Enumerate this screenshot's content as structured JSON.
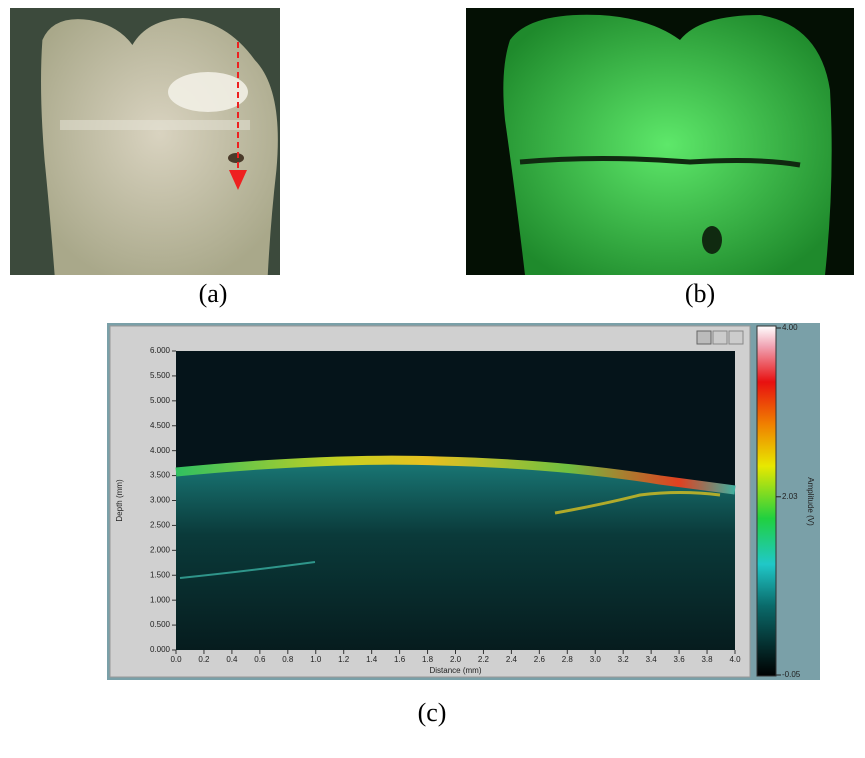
{
  "panels": {
    "a": "(a)",
    "b": "(b)",
    "c": "(c)"
  },
  "chart_data": {
    "type": "heatmap",
    "xlabel": "Distance (mm)",
    "ylabel": "Depth (mm)",
    "xlim": [
      0,
      4
    ],
    "ylim": [
      0,
      6
    ],
    "xticks": [
      {
        "value": 0,
        "label": "0.0"
      },
      {
        "value": 0.2,
        "label": "0.2"
      },
      {
        "value": 0.4,
        "label": "0.4"
      },
      {
        "value": 0.6,
        "label": "0.6"
      },
      {
        "value": 0.8,
        "label": "0.8"
      },
      {
        "value": 1,
        "label": "1.0"
      },
      {
        "value": 1.2,
        "label": "1.2"
      },
      {
        "value": 1.4,
        "label": "1.4"
      },
      {
        "value": 1.6,
        "label": "1.6"
      },
      {
        "value": 1.8,
        "label": "1.8"
      },
      {
        "value": 2,
        "label": "2.0"
      },
      {
        "value": 2.2,
        "label": "2.2"
      },
      {
        "value": 2.4,
        "label": "2.4"
      },
      {
        "value": 2.6,
        "label": "2.6"
      },
      {
        "value": 2.8,
        "label": "2.8"
      },
      {
        "value": 3,
        "label": "3.0"
      },
      {
        "value": 3.2,
        "label": "3.2"
      },
      {
        "value": 3.4,
        "label": "3.4"
      },
      {
        "value": 3.6,
        "label": "3.6"
      },
      {
        "value": 3.8,
        "label": "3.8"
      },
      {
        "value": 4,
        "label": "4.0"
      }
    ],
    "yticks": [
      {
        "value": 0,
        "label": "0.000"
      },
      {
        "value": 0.5,
        "label": "0.500"
      },
      {
        "value": 1,
        "label": "1.000"
      },
      {
        "value": 1.5,
        "label": "1.500"
      },
      {
        "value": 2,
        "label": "2.000"
      },
      {
        "value": 2.5,
        "label": "2.500"
      },
      {
        "value": 3,
        "label": "3.000"
      },
      {
        "value": 3.5,
        "label": "3.500"
      },
      {
        "value": 4,
        "label": "4.000"
      },
      {
        "value": 4.5,
        "label": "4.500"
      },
      {
        "value": 5,
        "label": "5.000"
      },
      {
        "value": 5.5,
        "label": "5.500"
      },
      {
        "value": 6,
        "label": "6.000"
      }
    ],
    "colorbar_label": "Amplitude (V)",
    "clim": [
      -0.05,
      4
    ],
    "cticks": [
      {
        "value": 4,
        "label": "4.00"
      },
      {
        "value": 2.03,
        "label": "2.03"
      },
      {
        "value": -0.05,
        "label": "-0.05"
      }
    ]
  }
}
